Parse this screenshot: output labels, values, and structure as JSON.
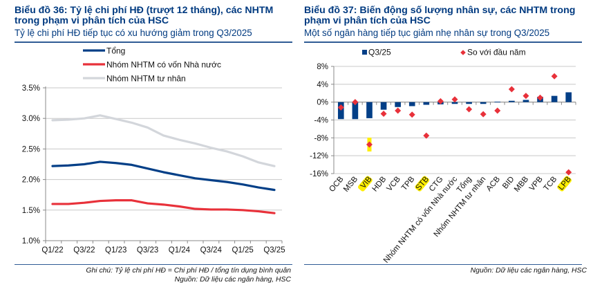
{
  "left": {
    "title": "Biểu đồ 36: Tỷ lệ chi phí HĐ (trượt 12 tháng), các NHTM trong phạm vi phân tích của HSC",
    "subtitle": "Tỷ lệ chi phí HĐ tiếp tục có xu hướng giảm trong Q3/2025",
    "note": "Ghi chú: Tỷ lệ chi phí HĐ = Chi phí HĐ / tổng tín dụng bình quân",
    "source": "Nguồn: Dữ liệu các ngân hàng, HSC"
  },
  "right": {
    "title": "Biểu đồ 37: Biến động số lượng nhân sự, các NHTM trong phạm vi phân tích của HSC",
    "subtitle": "Một số ngân hàng tiếp tục giảm nhẹ nhân sự trong Q3/2025",
    "source": "Nguồn: Dữ liệu các ngân hàng, HSC"
  },
  "chart_data": [
    {
      "type": "line",
      "title": "Tỷ lệ chi phí HĐ (trượt 12 tháng)",
      "x": [
        "Q1/22",
        "Q2/22",
        "Q3/22",
        "Q4/22",
        "Q1/23",
        "Q2/23",
        "Q3/23",
        "Q4/23",
        "Q1/24",
        "Q2/24",
        "Q3/24",
        "Q4/24",
        "Q1/25",
        "Q2/25",
        "Q3/25"
      ],
      "xtick_labels": [
        "Q1/22",
        "Q3/22",
        "Q1/23",
        "Q3/23",
        "Q1/24",
        "Q3/24",
        "Q1/25",
        "Q3/25"
      ],
      "yticks": [
        "1.0%",
        "1.5%",
        "2.0%",
        "2.5%",
        "3.0%",
        "3.5%"
      ],
      "ylim": [
        1.0,
        3.5
      ],
      "yunit": "%",
      "grid": true,
      "legend_position": "top",
      "series": [
        {
          "name": "Tổng",
          "color": "#033f87",
          "values": [
            2.22,
            2.23,
            2.25,
            2.29,
            2.27,
            2.24,
            2.18,
            2.12,
            2.07,
            2.02,
            1.99,
            1.96,
            1.92,
            1.87,
            1.83
          ]
        },
        {
          "name": "Nhóm NHTM có vốn Nhà nước",
          "color": "#e8313a",
          "values": [
            1.6,
            1.6,
            1.62,
            1.65,
            1.66,
            1.66,
            1.61,
            1.59,
            1.56,
            1.52,
            1.51,
            1.51,
            1.5,
            1.48,
            1.45
          ]
        },
        {
          "name": "Nhóm NHTM tư nhân",
          "color": "#d3d6db",
          "values": [
            2.97,
            2.98,
            3.0,
            3.05,
            2.99,
            2.93,
            2.85,
            2.72,
            2.65,
            2.59,
            2.52,
            2.46,
            2.38,
            2.28,
            2.22
          ]
        }
      ]
    },
    {
      "type": "bar",
      "title": "Biến động số lượng nhân sự",
      "categories": [
        "OCB",
        "MSB",
        "VIB",
        "HDB",
        "VCB",
        "TPB",
        "STB",
        "CTG",
        "Nhóm NHTM có vốn Nhà nước",
        "Tổng",
        "Nhóm NHTM tư nhân",
        "ACB",
        "BID",
        "MBB",
        "VPB",
        "TCB",
        "LPB"
      ],
      "highlighted_categories": [
        "VIB",
        "STB",
        "LPB"
      ],
      "highlight_color": "#ffee00",
      "yticks": [
        "-16%",
        "-12%",
        "-8%",
        "-4%",
        "0%",
        "4%",
        "8%"
      ],
      "ylim": [
        -16,
        8
      ],
      "yunit": "%",
      "grid": true,
      "legend_position": "top",
      "series": [
        {
          "name": "Q3/25",
          "kind": "bar",
          "color": "#033f87",
          "values": [
            -3.8,
            -3.8,
            -3.6,
            -1.7,
            -1.1,
            -0.9,
            -0.6,
            -0.5,
            -0.4,
            -0.4,
            -0.4,
            0.1,
            0.3,
            0.5,
            1.2,
            1.4,
            2.2
          ]
        },
        {
          "name": "So với đầu năm",
          "kind": "marker",
          "marker": "diamond",
          "color": "#e8313a",
          "values": [
            -1.2,
            0.0,
            -9.5,
            -2.6,
            -1.9,
            -2.8,
            -7.5,
            0.2,
            0.6,
            -1.6,
            -2.7,
            -1.9,
            2.9,
            1.4,
            1.0,
            5.8,
            -15.7
          ]
        }
      ]
    }
  ]
}
